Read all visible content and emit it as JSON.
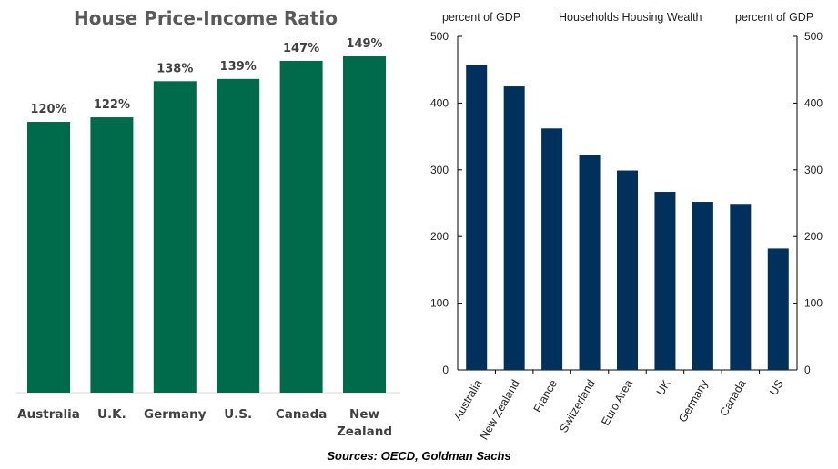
{
  "chart_data": [
    {
      "type": "bar",
      "title": "House Price-Income Ratio",
      "categories": [
        "Australia",
        "U.K.",
        "Germany",
        "U.S.",
        "Canada",
        "New Zealand"
      ],
      "category_lines": [
        [
          "Australia"
        ],
        [
          "U.K."
        ],
        [
          "Germany"
        ],
        [
          "U.S."
        ],
        [
          "Canada"
        ],
        [
          "New",
          "Zealand"
        ]
      ],
      "values": [
        120,
        122,
        138,
        139,
        147,
        149
      ],
      "data_labels": [
        "120%",
        "122%",
        "138%",
        "139%",
        "147%",
        "149%"
      ],
      "bar_color": "#006b4a",
      "ylim": [
        0,
        149
      ]
    },
    {
      "type": "bar",
      "title": "Households Housing Wealth",
      "ylabel_left": "percent of GDP",
      "ylabel_right": "percent of GDP",
      "categories": [
        "Australia",
        "New Zealand",
        "France",
        "Switzerland",
        "Euro Area",
        "UK",
        "Germany",
        "Canada",
        "US"
      ],
      "values": [
        457,
        425,
        362,
        322,
        299,
        267,
        252,
        249,
        182
      ],
      "yticks": [
        0,
        100,
        200,
        300,
        400,
        500
      ],
      "ylim": [
        0,
        500
      ],
      "bar_color": "#00305c",
      "grid": false
    }
  ],
  "sources": "Sources: OECD, Goldman Sachs"
}
